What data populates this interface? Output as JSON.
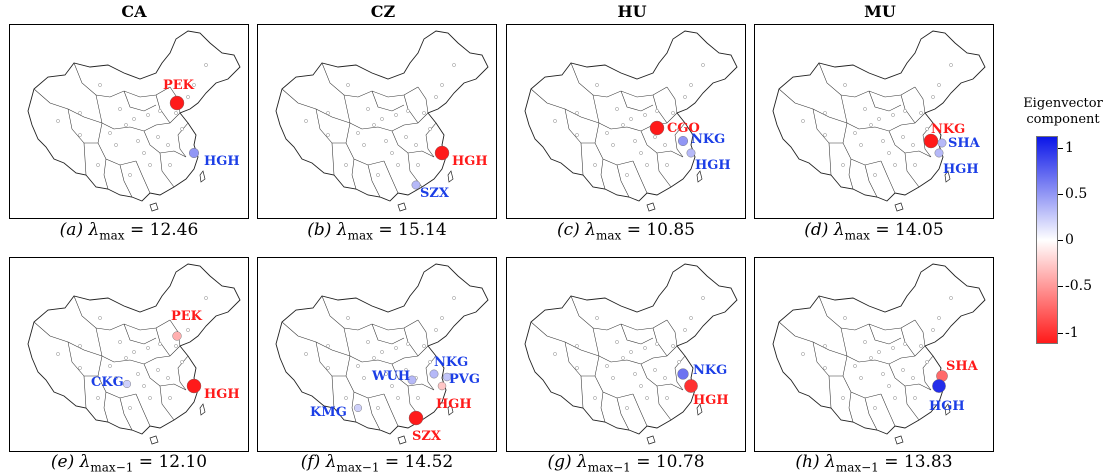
{
  "columns": [
    "CA",
    "CZ",
    "HU",
    "MU"
  ],
  "panels": [
    {
      "caption_letter": "(a)",
      "lambda": "λ",
      "subscript": "max",
      "value": "= 12.46",
      "cities": [
        {
          "code": "PEK",
          "component": -1.0
        },
        {
          "code": "HGH",
          "component": 0.45
        }
      ]
    },
    {
      "caption_letter": "(b)",
      "lambda": "λ",
      "subscript": "max",
      "value": "= 15.14",
      "cities": [
        {
          "code": "HGH",
          "component": -1.0
        },
        {
          "code": "SZX",
          "component": 0.3
        }
      ]
    },
    {
      "caption_letter": "(c)",
      "lambda": "λ",
      "subscript": "max",
      "value": "= 10.85",
      "cities": [
        {
          "code": "CGO",
          "component": -1.0
        },
        {
          "code": "NKG",
          "component": 0.45
        },
        {
          "code": "HGH",
          "component": 0.3
        }
      ]
    },
    {
      "caption_letter": "(d)",
      "lambda": "λ",
      "subscript": "max",
      "value": "= 14.05",
      "cities": [
        {
          "code": "NKG",
          "component": -1.0
        },
        {
          "code": "SHA",
          "component": 0.3
        },
        {
          "code": "HGH",
          "component": 0.3
        }
      ]
    },
    {
      "caption_letter": "(e)",
      "lambda": "λ",
      "subscript": "max−1",
      "value": "= 12.10",
      "cities": [
        {
          "code": "PEK",
          "component": -0.35
        },
        {
          "code": "CKG",
          "component": 0.2
        },
        {
          "code": "HGH",
          "component": -1.0
        }
      ]
    },
    {
      "caption_letter": "(f)",
      "lambda": "λ",
      "subscript": "max−1",
      "value": "= 14.52",
      "cities": [
        {
          "code": "WUH",
          "component": 0.3
        },
        {
          "code": "NKG",
          "component": 0.3
        },
        {
          "code": "PVG",
          "component": 0.25
        },
        {
          "code": "HGH",
          "component": -0.25
        },
        {
          "code": "KMG",
          "component": 0.2
        },
        {
          "code": "SZX",
          "component": -1.0
        }
      ]
    },
    {
      "caption_letter": "(g)",
      "lambda": "λ",
      "subscript": "max−1",
      "value": "= 10.78",
      "cities": [
        {
          "code": "NKG",
          "component": 0.6
        },
        {
          "code": "HGH",
          "component": -0.9
        }
      ]
    },
    {
      "caption_letter": "(h)",
      "lambda": "λ",
      "subscript": "max−1",
      "value": "= 13.83",
      "cities": [
        {
          "code": "SHA",
          "component": -0.65
        },
        {
          "code": "HGH",
          "component": 0.9
        }
      ]
    }
  ],
  "colorbar": {
    "title_line1": "Eigenvector",
    "title_line2": "component",
    "ticks": [
      "1",
      "0.5",
      "0",
      "-0.5",
      "-1"
    ],
    "color_max": "#0b16e8",
    "color_mid": "#ffffff",
    "color_min": "#ff1a1a"
  }
}
